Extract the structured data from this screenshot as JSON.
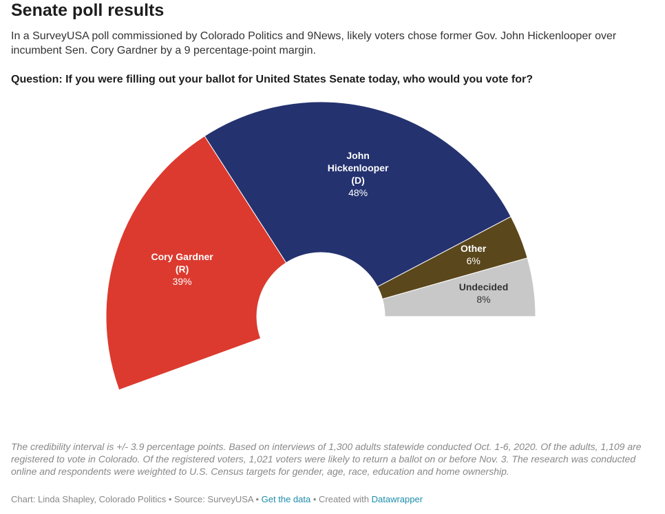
{
  "header": {
    "title": "Senate poll results",
    "subtitle": "In a SurveyUSA poll commissioned by Colorado Politics and 9News, likely voters chose former Gov. John Hickenlooper over incumbent Sen. Cory Gardner by a 9 percentage-point margin.",
    "question": "Question: If you were filling out your ballot for United States Senate today, who would you vote for?"
  },
  "chart_data": {
    "type": "pie",
    "variant": "half-donut",
    "categories": [
      "Cory Gardner (R)",
      "John Hickenlooper (D)",
      "Other",
      "Undecided"
    ],
    "values": [
      39,
      48,
      6,
      8
    ],
    "slices": [
      {
        "name_lines": [
          "Cory Gardner",
          "(R)"
        ],
        "value": 39,
        "value_label": "39%",
        "color": "#dc3a2f",
        "text_color": "#ffffff"
      },
      {
        "name_lines": [
          "John",
          "Hickenlooper",
          "(D)"
        ],
        "value": 48,
        "value_label": "48%",
        "color": "#24326f",
        "text_color": "#ffffff"
      },
      {
        "name_lines": [
          "Other"
        ],
        "value": 6,
        "value_label": "6%",
        "color": "#5b471c",
        "text_color": "#ffffff"
      },
      {
        "name_lines": [
          "Undecided"
        ],
        "value": 8,
        "value_label": "8%",
        "color": "#c8c8c8",
        "text_color": "#333333"
      }
    ]
  },
  "notes": "The credibility interval is +/- 3.9 percentage points. Based on interviews of 1,300 adults statewide conducted Oct. 1-6, 2020. Of the adults, 1,109 are registered to vote in Colorado. Of the registered voters, 1,021 voters were likely to return a ballot on or before Nov. 3. The research was conducted online and respondents were weighted to U.S. Census targets for gender, age, race, education and home ownership.",
  "footer": {
    "credit": "Chart: Linda Shapley, Colorado Politics",
    "separator": " • ",
    "source": "Source: SurveyUSA",
    "get_data": "Get the data",
    "created_with": "Created with ",
    "tool": "Datawrapper"
  }
}
